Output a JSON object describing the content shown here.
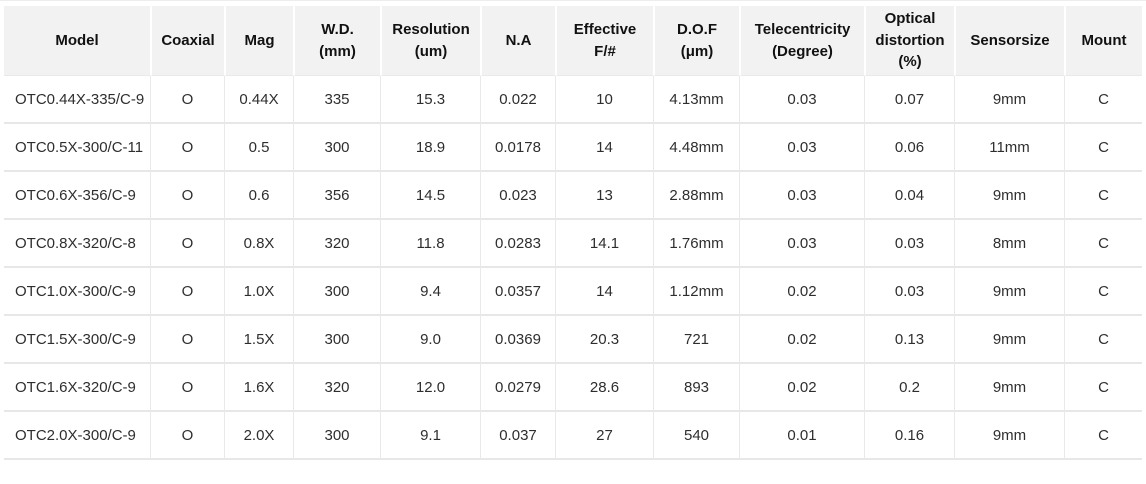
{
  "table": {
    "columns": [
      {
        "key": "model",
        "label": "Model"
      },
      {
        "key": "coaxial",
        "label": "Coaxial"
      },
      {
        "key": "mag",
        "label": "Mag"
      },
      {
        "key": "wd",
        "label": "W.D.\n(mm)"
      },
      {
        "key": "resolution",
        "label": "Resolution\n(um)"
      },
      {
        "key": "na",
        "label": "N.A"
      },
      {
        "key": "effective_f",
        "label": "Effective\nF/#"
      },
      {
        "key": "dof",
        "label": "D.O.F\n(μm)"
      },
      {
        "key": "telecentricity",
        "label": "Telecentricity\n(Degree)"
      },
      {
        "key": "optical_distortion",
        "label": "Optical\ndistortion\n(%)"
      },
      {
        "key": "sensor_size",
        "label": "Sensorsize"
      },
      {
        "key": "mount",
        "label": "Mount"
      }
    ],
    "rows": [
      {
        "model": "OTC0.44X-335/C-9",
        "coaxial": "O",
        "mag": "0.44X",
        "wd": "335",
        "resolution": "15.3",
        "na": "0.022",
        "effective_f": "10",
        "dof": "4.13mm",
        "telecentricity": "0.03",
        "optical_distortion": "0.07",
        "sensor_size": "9mm",
        "mount": "C"
      },
      {
        "model": "OTC0.5X-300/C-11",
        "coaxial": "O",
        "mag": "0.5",
        "wd": "300",
        "resolution": "18.9",
        "na": "0.0178",
        "effective_f": "14",
        "dof": "4.48mm",
        "telecentricity": "0.03",
        "optical_distortion": "0.06",
        "sensor_size": "11mm",
        "mount": "C"
      },
      {
        "model": "OTC0.6X-356/C-9",
        "coaxial": "O",
        "mag": "0.6",
        "wd": "356",
        "resolution": "14.5",
        "na": "0.023",
        "effective_f": "13",
        "dof": "2.88mm",
        "telecentricity": "0.03",
        "optical_distortion": "0.04",
        "sensor_size": "9mm",
        "mount": "C"
      },
      {
        "model": "OTC0.8X-320/C-8",
        "coaxial": "O",
        "mag": "0.8X",
        "wd": "320",
        "resolution": "11.8",
        "na": "0.0283",
        "effective_f": "14.1",
        "dof": "1.76mm",
        "telecentricity": "0.03",
        "optical_distortion": "0.03",
        "sensor_size": "8mm",
        "mount": "C"
      },
      {
        "model": "OTC1.0X-300/C-9",
        "coaxial": "O",
        "mag": "1.0X",
        "wd": "300",
        "resolution": "9.4",
        "na": "0.0357",
        "effective_f": "14",
        "dof": "1.12mm",
        "telecentricity": "0.02",
        "optical_distortion": "0.03",
        "sensor_size": "9mm",
        "mount": "C"
      },
      {
        "model": "OTC1.5X-300/C-9",
        "coaxial": "O",
        "mag": "1.5X",
        "wd": "300",
        "resolution": "9.0",
        "na": "0.0369",
        "effective_f": "20.3",
        "dof": "721",
        "telecentricity": "0.02",
        "optical_distortion": "0.13",
        "sensor_size": "9mm",
        "mount": "C"
      },
      {
        "model": "OTC1.6X-320/C-9",
        "coaxial": "O",
        "mag": "1.6X",
        "wd": "320",
        "resolution": "12.0",
        "na": "0.0279",
        "effective_f": "28.6",
        "dof": "893",
        "telecentricity": "0.02",
        "optical_distortion": "0.2",
        "sensor_size": "9mm",
        "mount": "C"
      },
      {
        "model": "OTC2.0X-300/C-9",
        "coaxial": "O",
        "mag": "2.0X",
        "wd": "300",
        "resolution": "9.1",
        "na": "0.037",
        "effective_f": "27",
        "dof": "540",
        "telecentricity": "0.01",
        "optical_distortion": "0.16",
        "sensor_size": "9mm",
        "mount": "C"
      }
    ]
  },
  "colors": {
    "header_bg": "#f2f2f2",
    "row_bg": "#ffffff",
    "grid_border": "#e7e7e7",
    "header_text": "#111111",
    "body_text": "#2e2e2e"
  }
}
